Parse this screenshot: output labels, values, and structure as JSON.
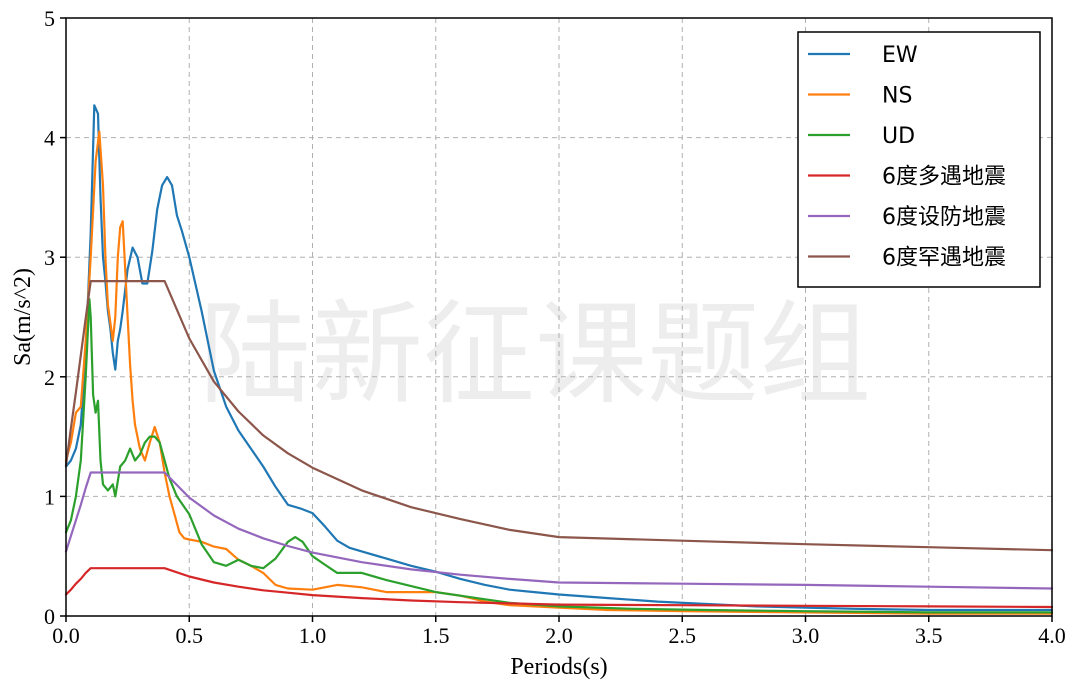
{
  "watermark": "陆新征课题组",
  "chart_data": {
    "type": "line",
    "title": "",
    "xlabel": "Periods(s)",
    "ylabel": "Sa(m/s^2)",
    "xlim": [
      0,
      4
    ],
    "ylim": [
      0,
      5
    ],
    "x_ticks": [
      0,
      0.5,
      1,
      1.5,
      2,
      2.5,
      3,
      3.5,
      4
    ],
    "x_tick_labels": [
      "0.0",
      "0.5",
      "1.0",
      "1.5",
      "2.0",
      "2.5",
      "3.0",
      "3.5",
      "4.0"
    ],
    "y_ticks": [
      0,
      1,
      2,
      3,
      4,
      5
    ],
    "y_tick_labels": [
      "0",
      "1",
      "2",
      "3",
      "4",
      "5"
    ],
    "grid": true,
    "legend_position": "top-right",
    "series": [
      {
        "name": "EW",
        "color": "#1f77b4",
        "points": [
          [
            0,
            1.25
          ],
          [
            0.02,
            1.3
          ],
          [
            0.04,
            1.4
          ],
          [
            0.06,
            1.6
          ],
          [
            0.08,
            2.2
          ],
          [
            0.1,
            3.2
          ],
          [
            0.115,
            4.27
          ],
          [
            0.13,
            4.2
          ],
          [
            0.14,
            3.5
          ],
          [
            0.15,
            3.0
          ],
          [
            0.16,
            2.8
          ],
          [
            0.17,
            2.55
          ],
          [
            0.18,
            2.4
          ],
          [
            0.19,
            2.2
          ],
          [
            0.2,
            2.06
          ],
          [
            0.21,
            2.3
          ],
          [
            0.22,
            2.4
          ],
          [
            0.23,
            2.55
          ],
          [
            0.25,
            2.9
          ],
          [
            0.27,
            3.08
          ],
          [
            0.29,
            3.0
          ],
          [
            0.31,
            2.78
          ],
          [
            0.33,
            2.78
          ],
          [
            0.35,
            3.05
          ],
          [
            0.37,
            3.4
          ],
          [
            0.39,
            3.6
          ],
          [
            0.41,
            3.67
          ],
          [
            0.43,
            3.6
          ],
          [
            0.45,
            3.35
          ],
          [
            0.47,
            3.22
          ],
          [
            0.5,
            3.0
          ],
          [
            0.55,
            2.55
          ],
          [
            0.6,
            2.05
          ],
          [
            0.65,
            1.75
          ],
          [
            0.7,
            1.55
          ],
          [
            0.75,
            1.4
          ],
          [
            0.8,
            1.25
          ],
          [
            0.85,
            1.08
          ],
          [
            0.9,
            0.93
          ],
          [
            0.95,
            0.9
          ],
          [
            1.0,
            0.86
          ],
          [
            1.05,
            0.75
          ],
          [
            1.1,
            0.63
          ],
          [
            1.15,
            0.57
          ],
          [
            1.2,
            0.54
          ],
          [
            1.3,
            0.48
          ],
          [
            1.4,
            0.42
          ],
          [
            1.5,
            0.37
          ],
          [
            1.6,
            0.31
          ],
          [
            1.7,
            0.26
          ],
          [
            1.8,
            0.22
          ],
          [
            1.9,
            0.2
          ],
          [
            2.0,
            0.18
          ],
          [
            2.2,
            0.15
          ],
          [
            2.4,
            0.12
          ],
          [
            2.6,
            0.1
          ],
          [
            2.8,
            0.08
          ],
          [
            3.0,
            0.07
          ],
          [
            3.2,
            0.06
          ],
          [
            3.5,
            0.05
          ],
          [
            3.8,
            0.05
          ],
          [
            4.0,
            0.05
          ]
        ]
      },
      {
        "name": "NS",
        "color": "#ff7f0e",
        "points": [
          [
            0,
            1.3
          ],
          [
            0.02,
            1.45
          ],
          [
            0.04,
            1.7
          ],
          [
            0.06,
            1.75
          ],
          [
            0.08,
            2.3
          ],
          [
            0.1,
            3.0
          ],
          [
            0.12,
            3.8
          ],
          [
            0.135,
            4.05
          ],
          [
            0.15,
            3.6
          ],
          [
            0.16,
            3.0
          ],
          [
            0.17,
            2.6
          ],
          [
            0.18,
            2.45
          ],
          [
            0.19,
            2.3
          ],
          [
            0.2,
            2.5
          ],
          [
            0.21,
            3.0
          ],
          [
            0.22,
            3.25
          ],
          [
            0.23,
            3.3
          ],
          [
            0.24,
            2.9
          ],
          [
            0.25,
            2.5
          ],
          [
            0.26,
            2.1
          ],
          [
            0.27,
            1.8
          ],
          [
            0.28,
            1.6
          ],
          [
            0.3,
            1.4
          ],
          [
            0.32,
            1.3
          ],
          [
            0.34,
            1.45
          ],
          [
            0.36,
            1.58
          ],
          [
            0.38,
            1.45
          ],
          [
            0.4,
            1.2
          ],
          [
            0.42,
            1.0
          ],
          [
            0.44,
            0.85
          ],
          [
            0.46,
            0.7
          ],
          [
            0.48,
            0.65
          ],
          [
            0.5,
            0.64
          ],
          [
            0.55,
            0.62
          ],
          [
            0.6,
            0.58
          ],
          [
            0.65,
            0.56
          ],
          [
            0.7,
            0.47
          ],
          [
            0.75,
            0.42
          ],
          [
            0.8,
            0.36
          ],
          [
            0.85,
            0.26
          ],
          [
            0.9,
            0.23
          ],
          [
            1.0,
            0.22
          ],
          [
            1.1,
            0.26
          ],
          [
            1.2,
            0.24
          ],
          [
            1.3,
            0.2
          ],
          [
            1.4,
            0.2
          ],
          [
            1.5,
            0.2
          ],
          [
            1.6,
            0.17
          ],
          [
            1.7,
            0.12
          ],
          [
            1.8,
            0.09
          ],
          [
            2.0,
            0.07
          ],
          [
            2.2,
            0.05
          ],
          [
            2.5,
            0.04
          ],
          [
            3.0,
            0.03
          ],
          [
            3.5,
            0.02
          ],
          [
            4.0,
            0.02
          ]
        ]
      },
      {
        "name": "UD",
        "color": "#2ca02c",
        "points": [
          [
            0,
            0.7
          ],
          [
            0.02,
            0.8
          ],
          [
            0.04,
            1.0
          ],
          [
            0.06,
            1.3
          ],
          [
            0.08,
            2.0
          ],
          [
            0.095,
            2.65
          ],
          [
            0.1,
            2.5
          ],
          [
            0.11,
            1.85
          ],
          [
            0.12,
            1.7
          ],
          [
            0.13,
            1.8
          ],
          [
            0.14,
            1.3
          ],
          [
            0.15,
            1.1
          ],
          [
            0.17,
            1.05
          ],
          [
            0.19,
            1.1
          ],
          [
            0.2,
            1.0
          ],
          [
            0.22,
            1.25
          ],
          [
            0.24,
            1.3
          ],
          [
            0.26,
            1.4
          ],
          [
            0.28,
            1.3
          ],
          [
            0.3,
            1.35
          ],
          [
            0.32,
            1.45
          ],
          [
            0.34,
            1.5
          ],
          [
            0.36,
            1.5
          ],
          [
            0.38,
            1.45
          ],
          [
            0.4,
            1.3
          ],
          [
            0.42,
            1.15
          ],
          [
            0.45,
            1.0
          ],
          [
            0.5,
            0.85
          ],
          [
            0.55,
            0.6
          ],
          [
            0.6,
            0.45
          ],
          [
            0.65,
            0.42
          ],
          [
            0.7,
            0.47
          ],
          [
            0.75,
            0.42
          ],
          [
            0.8,
            0.4
          ],
          [
            0.85,
            0.48
          ],
          [
            0.9,
            0.62
          ],
          [
            0.93,
            0.66
          ],
          [
            0.96,
            0.62
          ],
          [
            1.0,
            0.5
          ],
          [
            1.05,
            0.43
          ],
          [
            1.1,
            0.36
          ],
          [
            1.2,
            0.36
          ],
          [
            1.3,
            0.3
          ],
          [
            1.4,
            0.25
          ],
          [
            1.5,
            0.2
          ],
          [
            1.6,
            0.17
          ],
          [
            1.7,
            0.14
          ],
          [
            1.8,
            0.11
          ],
          [
            2.0,
            0.08
          ],
          [
            2.3,
            0.06
          ],
          [
            2.6,
            0.05
          ],
          [
            3.0,
            0.04
          ],
          [
            3.5,
            0.03
          ],
          [
            4.0,
            0.03
          ]
        ]
      },
      {
        "name": "6度多遇地震",
        "color": "#d62728",
        "points": [
          [
            0,
            0.18
          ],
          [
            0.02,
            0.22
          ],
          [
            0.04,
            0.27
          ],
          [
            0.06,
            0.31
          ],
          [
            0.08,
            0.36
          ],
          [
            0.1,
            0.4
          ],
          [
            0.2,
            0.4
          ],
          [
            0.3,
            0.4
          ],
          [
            0.4,
            0.4
          ],
          [
            0.5,
            0.33
          ],
          [
            0.6,
            0.28
          ],
          [
            0.7,
            0.245
          ],
          [
            0.8,
            0.215
          ],
          [
            0.9,
            0.195
          ],
          [
            1.0,
            0.175
          ],
          [
            1.2,
            0.15
          ],
          [
            1.4,
            0.13
          ],
          [
            1.6,
            0.115
          ],
          [
            1.8,
            0.105
          ],
          [
            2.0,
            0.095
          ],
          [
            2.5,
            0.09
          ],
          [
            3.0,
            0.085
          ],
          [
            3.5,
            0.08
          ],
          [
            4.0,
            0.075
          ]
        ]
      },
      {
        "name": "6度设防地震",
        "color": "#9467bd",
        "points": [
          [
            0,
            0.54
          ],
          [
            0.02,
            0.67
          ],
          [
            0.04,
            0.8
          ],
          [
            0.06,
            0.93
          ],
          [
            0.08,
            1.07
          ],
          [
            0.1,
            1.2
          ],
          [
            0.2,
            1.2
          ],
          [
            0.3,
            1.2
          ],
          [
            0.4,
            1.2
          ],
          [
            0.5,
            0.99
          ],
          [
            0.6,
            0.84
          ],
          [
            0.7,
            0.73
          ],
          [
            0.8,
            0.65
          ],
          [
            0.9,
            0.585
          ],
          [
            1.0,
            0.53
          ],
          [
            1.2,
            0.45
          ],
          [
            1.4,
            0.39
          ],
          [
            1.6,
            0.345
          ],
          [
            1.8,
            0.31
          ],
          [
            2.0,
            0.28
          ],
          [
            2.5,
            0.27
          ],
          [
            3.0,
            0.26
          ],
          [
            3.5,
            0.245
          ],
          [
            4.0,
            0.23
          ]
        ]
      },
      {
        "name": "6度罕遇地震",
        "color": "#8c564b",
        "points": [
          [
            0,
            1.26
          ],
          [
            0.02,
            1.57
          ],
          [
            0.04,
            1.87
          ],
          [
            0.06,
            2.18
          ],
          [
            0.08,
            2.49
          ],
          [
            0.1,
            2.8
          ],
          [
            0.2,
            2.8
          ],
          [
            0.3,
            2.8
          ],
          [
            0.4,
            2.8
          ],
          [
            0.5,
            2.32
          ],
          [
            0.6,
            1.96
          ],
          [
            0.7,
            1.71
          ],
          [
            0.8,
            1.51
          ],
          [
            0.9,
            1.36
          ],
          [
            1.0,
            1.24
          ],
          [
            1.2,
            1.05
          ],
          [
            1.4,
            0.91
          ],
          [
            1.6,
            0.81
          ],
          [
            1.8,
            0.72
          ],
          [
            2.0,
            0.66
          ],
          [
            2.5,
            0.63
          ],
          [
            3.0,
            0.6
          ],
          [
            3.5,
            0.575
          ],
          [
            4.0,
            0.55
          ]
        ]
      }
    ]
  }
}
